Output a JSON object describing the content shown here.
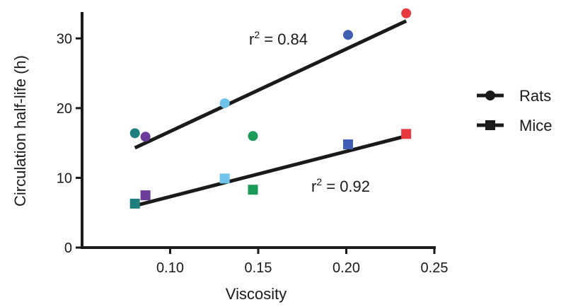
{
  "chart_data": {
    "type": "scatter",
    "xlabel": "Viscosity",
    "ylabel": "Circulation half-life (h)",
    "xlim": [
      0.05,
      0.25
    ],
    "ylim": [
      0,
      35
    ],
    "x_ticks": [
      0.1,
      0.15,
      0.2,
      0.25
    ],
    "x_tick_labels": [
      "0.10",
      "0.15",
      "0.20",
      "0.25"
    ],
    "y_ticks": [
      0,
      10,
      20,
      30
    ],
    "y_tick_labels": [
      "0",
      "10",
      "20",
      "30"
    ],
    "grid": false,
    "legend_position": "right",
    "series": [
      {
        "name": "Rats",
        "marker": "circle",
        "points": [
          {
            "x": 0.08,
            "y": 16.4,
            "color": "#1f7f7f"
          },
          {
            "x": 0.086,
            "y": 15.9,
            "color": "#6a3d9a"
          },
          {
            "x": 0.131,
            "y": 20.7,
            "color": "#6fc3ea"
          },
          {
            "x": 0.147,
            "y": 16.0,
            "color": "#1a9b57"
          },
          {
            "x": 0.201,
            "y": 30.5,
            "color": "#3f5fb5"
          },
          {
            "x": 0.234,
            "y": 33.6,
            "color": "#e8393f"
          }
        ],
        "fit": {
          "x": [
            0.08,
            0.234
          ],
          "y": [
            14.3,
            32.5
          ]
        },
        "r2_label": "r",
        "r2_sup": "2",
        "r2_value": " = 0.84"
      },
      {
        "name": "Mice",
        "marker": "square",
        "points": [
          {
            "x": 0.08,
            "y": 6.3,
            "color": "#1f7f7f"
          },
          {
            "x": 0.086,
            "y": 7.5,
            "color": "#6a3d9a"
          },
          {
            "x": 0.131,
            "y": 9.9,
            "color": "#6fc3ea"
          },
          {
            "x": 0.147,
            "y": 8.3,
            "color": "#1a9b57"
          },
          {
            "x": 0.201,
            "y": 14.8,
            "color": "#3f5fb5"
          },
          {
            "x": 0.234,
            "y": 16.3,
            "color": "#e8393f"
          }
        ],
        "fit": {
          "x": [
            0.08,
            0.234
          ],
          "y": [
            6.0,
            16.0
          ]
        },
        "r2_label": "r",
        "r2_sup": "2",
        "r2_value": " = 0.92"
      }
    ],
    "colors": {
      "axis": "#1a1a1a",
      "fit_line": "#1a1a1a",
      "legend_marker": "#1a1a1a"
    }
  }
}
